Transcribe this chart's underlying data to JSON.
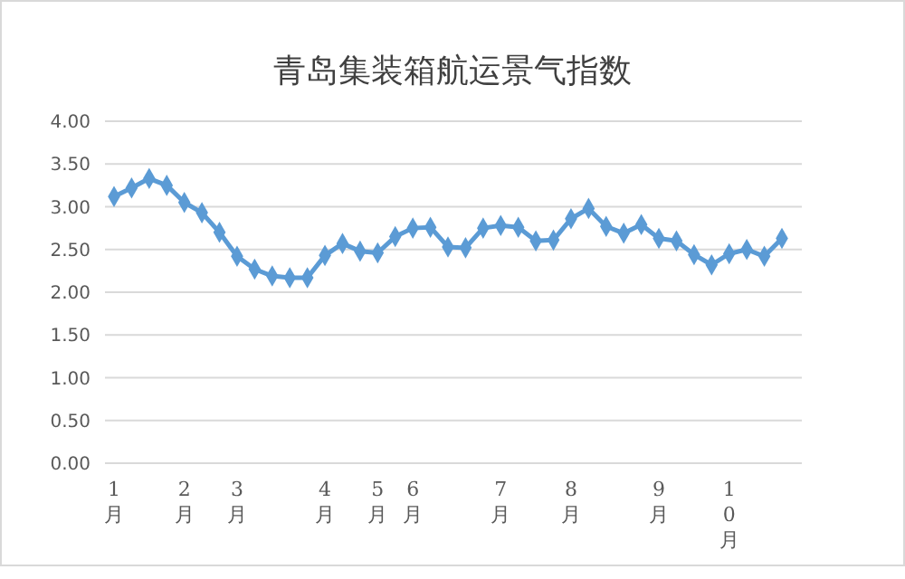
{
  "chart_data": {
    "type": "line",
    "title": "青岛集装箱航运景气指数",
    "categories": [
      "1月",
      null,
      null,
      null,
      "2月",
      null,
      null,
      "3月",
      null,
      null,
      null,
      null,
      "4月",
      null,
      null,
      "5月",
      null,
      "6月",
      null,
      null,
      null,
      null,
      "7月",
      null,
      null,
      null,
      "8月",
      null,
      null,
      null,
      null,
      "9月",
      null,
      null,
      null,
      "10月",
      null,
      null,
      null
    ],
    "series": [
      {
        "color": "#5b9bd5",
        "values": [
          3.12,
          3.22,
          3.33,
          3.25,
          3.05,
          2.93,
          2.7,
          2.42,
          2.27,
          2.19,
          2.17,
          2.17,
          2.43,
          2.57,
          2.48,
          2.46,
          2.65,
          2.75,
          2.76,
          2.53,
          2.52,
          2.75,
          2.78,
          2.76,
          2.6,
          2.61,
          2.86,
          2.98,
          2.77,
          2.69,
          2.79,
          2.63,
          2.6,
          2.44,
          2.32,
          2.45,
          2.5,
          2.42,
          2.63
        ]
      }
    ],
    "ylim": [
      0,
      4
    ],
    "yticks": [
      {
        "value": 0,
        "label": "0.00"
      },
      {
        "value": 0.5,
        "label": "0.50"
      },
      {
        "value": 1,
        "label": "1.00"
      },
      {
        "value": 1.5,
        "label": "1.50"
      },
      {
        "value": 2,
        "label": "2.00"
      },
      {
        "value": 2.5,
        "label": "2.50"
      },
      {
        "value": 3,
        "label": "3.00"
      },
      {
        "value": 3.5,
        "label": "3.50"
      },
      {
        "value": 4,
        "label": "4.00"
      }
    ],
    "grid": "y",
    "marker": "diamond",
    "line_style": "solid"
  }
}
